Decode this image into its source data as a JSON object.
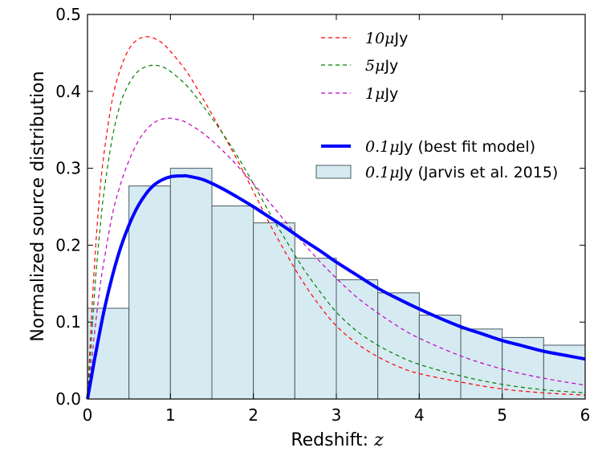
{
  "chart_data": {
    "type": "bar",
    "xlabel": "Redshift: ",
    "xlabel_math": "z",
    "ylabel": "Normalized source distribution",
    "xlim": [
      0,
      6
    ],
    "ylim": [
      0,
      0.5
    ],
    "x_ticks": [
      0,
      1,
      2,
      3,
      4,
      5,
      6
    ],
    "x_tick_labels": [
      "0",
      "1",
      "2",
      "3",
      "4",
      "5",
      "6"
    ],
    "y_ticks": [
      0.0,
      0.1,
      0.2,
      0.3,
      0.4,
      0.5
    ],
    "y_tick_labels": [
      "0.0",
      "0.1",
      "0.2",
      "0.3",
      "0.4",
      "0.5"
    ],
    "histogram": {
      "name": "0.1μJy (Jarvis et al. 2015)",
      "bin_edges": [
        0,
        0.5,
        1,
        1.5,
        2,
        2.5,
        3,
        3.5,
        4,
        4.5,
        5,
        5.5,
        6
      ],
      "values": [
        0.118,
        0.277,
        0.3,
        0.251,
        0.229,
        0.183,
        0.155,
        0.138,
        0.109,
        0.091,
        0.08,
        0.07
      ],
      "fill": "#d6eaf2",
      "edge": "#4a5a60"
    },
    "series": [
      {
        "name": "10μJy",
        "color": "#ff0000",
        "style": "dashed",
        "x": [
          0,
          0.05,
          0.1,
          0.15,
          0.2,
          0.3,
          0.4,
          0.5,
          0.6,
          0.7,
          0.8,
          0.9,
          1.0,
          1.2,
          1.4,
          1.6,
          1.8,
          2.0,
          2.2,
          2.4,
          2.6,
          2.8,
          3.0,
          3.25,
          3.5,
          3.75,
          4.0,
          4.5,
          5.0,
          5.5,
          6.0
        ],
        "values": [
          0,
          0.11,
          0.2,
          0.27,
          0.32,
          0.39,
          0.43,
          0.455,
          0.467,
          0.471,
          0.469,
          0.463,
          0.452,
          0.425,
          0.389,
          0.351,
          0.312,
          0.27,
          0.227,
          0.188,
          0.152,
          0.121,
          0.095,
          0.072,
          0.055,
          0.042,
          0.033,
          0.022,
          0.013,
          0.008,
          0.005
        ]
      },
      {
        "name": "5μJy",
        "color": "#008000",
        "style": "dashed",
        "x": [
          0,
          0.05,
          0.1,
          0.15,
          0.2,
          0.3,
          0.4,
          0.5,
          0.6,
          0.7,
          0.8,
          0.9,
          1.0,
          1.2,
          1.4,
          1.6,
          1.8,
          2.0,
          2.2,
          2.4,
          2.6,
          2.8,
          3.0,
          3.25,
          3.5,
          3.75,
          4.0,
          4.5,
          5.0,
          5.5,
          6.0
        ],
        "values": [
          0,
          0.08,
          0.16,
          0.22,
          0.27,
          0.34,
          0.385,
          0.41,
          0.425,
          0.432,
          0.434,
          0.432,
          0.426,
          0.407,
          0.38,
          0.35,
          0.317,
          0.28,
          0.241,
          0.205,
          0.17,
          0.14,
          0.113,
          0.088,
          0.07,
          0.056,
          0.045,
          0.03,
          0.019,
          0.012,
          0.008
        ]
      },
      {
        "name": "1μJy",
        "color": "#c000c0",
        "style": "dashed",
        "x": [
          0,
          0.05,
          0.1,
          0.15,
          0.2,
          0.3,
          0.4,
          0.5,
          0.6,
          0.7,
          0.8,
          0.9,
          1.0,
          1.1,
          1.2,
          1.4,
          1.6,
          1.8,
          2.0,
          2.2,
          2.4,
          2.6,
          2.8,
          3.0,
          3.25,
          3.5,
          3.75,
          4.0,
          4.5,
          5.0,
          5.5,
          6.0
        ],
        "values": [
          0,
          0.05,
          0.1,
          0.145,
          0.18,
          0.24,
          0.28,
          0.31,
          0.333,
          0.349,
          0.359,
          0.364,
          0.365,
          0.363,
          0.359,
          0.345,
          0.326,
          0.304,
          0.28,
          0.255,
          0.229,
          0.203,
          0.179,
          0.157,
          0.132,
          0.112,
          0.094,
          0.079,
          0.056,
          0.039,
          0.027,
          0.018
        ]
      },
      {
        "name": "0.1μJy (best fit model)",
        "color": "#0000ff",
        "style": "solid",
        "x": [
          0,
          0.05,
          0.1,
          0.2,
          0.3,
          0.4,
          0.5,
          0.6,
          0.7,
          0.8,
          0.9,
          1.0,
          1.1,
          1.15,
          1.2,
          1.4,
          1.6,
          1.8,
          2.0,
          2.2,
          2.4,
          2.6,
          2.8,
          3.0,
          3.25,
          3.5,
          3.75,
          4.0,
          4.25,
          4.5,
          4.75,
          5.0,
          5.25,
          5.5,
          5.75,
          6.0
        ],
        "values": [
          0,
          0.03,
          0.06,
          0.115,
          0.16,
          0.197,
          0.226,
          0.249,
          0.266,
          0.278,
          0.285,
          0.289,
          0.29,
          0.29,
          0.29,
          0.285,
          0.275,
          0.263,
          0.25,
          0.236,
          0.222,
          0.207,
          0.193,
          0.178,
          0.161,
          0.144,
          0.13,
          0.117,
          0.105,
          0.094,
          0.085,
          0.076,
          0.069,
          0.062,
          0.057,
          0.052
        ]
      }
    ],
    "legend": {
      "placement": "top-right",
      "entries": [
        {
          "key": "10",
          "math": "10μ",
          "text": "Jy",
          "series": 0
        },
        {
          "key": "5",
          "math": "5μ",
          "text": "Jy",
          "series": 1
        },
        {
          "key": "1",
          "math": "1μ",
          "text": "Jy",
          "series": 2
        },
        {
          "key": "fit",
          "math": "0.1μ",
          "text": "Jy (best fit model)",
          "series": 3
        },
        {
          "key": "hist",
          "math": "0.1μ",
          "text": "Jy (Jarvis et al. 2015)",
          "series": "histogram"
        }
      ]
    }
  }
}
